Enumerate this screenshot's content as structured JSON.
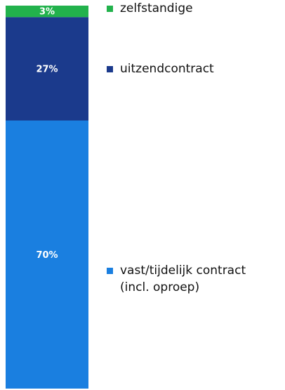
{
  "chart_data": {
    "type": "stacked-bar",
    "series": [
      {
        "name": "vast/tijdelijk contract\n(incl. oproep)",
        "color": "#1a7fe0",
        "values": [
          70
        ],
        "value_labels": [
          "70%"
        ]
      },
      {
        "name": "uitzendcontract",
        "color": "#1b3a8c",
        "values": [
          27
        ],
        "value_labels": [
          "27%"
        ]
      },
      {
        "name": "zelfstandige",
        "color": "#22b24c",
        "values": [
          3
        ],
        "value_labels": [
          "3%"
        ]
      }
    ]
  }
}
